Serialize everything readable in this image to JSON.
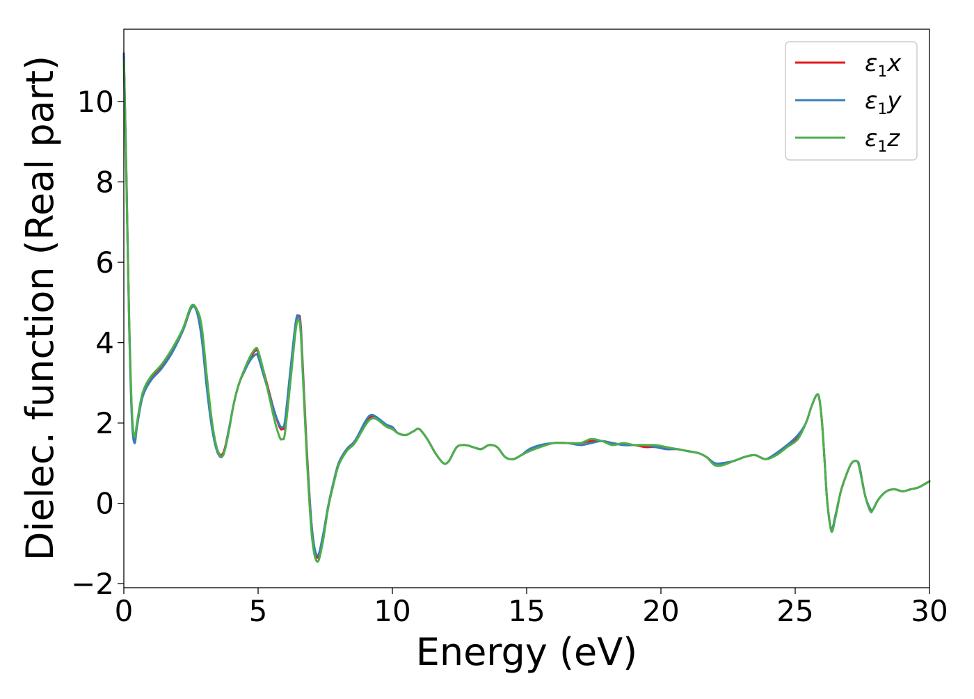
{
  "chart_data": {
    "type": "line",
    "xlabel": "Energy (eV)",
    "ylabel": "Dielec. function (Real part)",
    "xlim": [
      0,
      30
    ],
    "ylim": [
      -2.1,
      11.8
    ],
    "x_ticks": [
      0,
      5,
      10,
      15,
      20,
      25,
      30
    ],
    "y_ticks": [
      -2,
      0,
      2,
      4,
      6,
      8,
      10
    ],
    "x_tick_labels": [
      "0",
      "5",
      "10",
      "15",
      "20",
      "25",
      "30"
    ],
    "y_tick_labels": [
      "−2",
      "0",
      "2",
      "4",
      "6",
      "8",
      "10"
    ],
    "grid": false,
    "legend_position": "top-right",
    "series": [
      {
        "name": "ε1x",
        "symbol": "ε",
        "subscript": "1",
        "suffix": "x",
        "color": "#e41a1c",
        "x": [
          0,
          0.1,
          0.2,
          0.3,
          0.4,
          0.5,
          0.7,
          1.0,
          1.4,
          1.8,
          2.2,
          2.5,
          2.7,
          2.9,
          3.1,
          3.3,
          3.5,
          3.7,
          3.9,
          4.1,
          4.3,
          4.5,
          4.7,
          4.9,
          5.0,
          5.2,
          5.4,
          5.6,
          5.8,
          5.9,
          6.0,
          6.2,
          6.4,
          6.5,
          6.6,
          6.8,
          7.0,
          7.2,
          7.4,
          7.6,
          7.8,
          8.0,
          8.3,
          8.6,
          9.0,
          9.2,
          9.4,
          9.6,
          9.8,
          10.0,
          10.2,
          10.5,
          10.8,
          11.0,
          11.3,
          11.6,
          11.9,
          12.1,
          12.4,
          12.7,
          13.0,
          13.3,
          13.6,
          13.9,
          14.2,
          14.5,
          14.8,
          15.1,
          15.5,
          16.0,
          16.5,
          17.0,
          17.4,
          17.8,
          18.2,
          18.6,
          19.0,
          19.4,
          19.8,
          20.2,
          20.6,
          21.0,
          21.4,
          21.7,
          22.0,
          22.3,
          22.7,
          23.1,
          23.5,
          23.9,
          24.3,
          24.7,
          25.1,
          25.4,
          25.6,
          25.8,
          25.9,
          26.0,
          26.1,
          26.2,
          26.35,
          26.5,
          26.7,
          26.9,
          27.1,
          27.3,
          27.4,
          27.6,
          27.8,
          27.9,
          28.1,
          28.4,
          28.7,
          29.0,
          29.3,
          29.6,
          30.0
        ],
        "y": [
          11.2,
          8.0,
          4.5,
          2.2,
          1.6,
          2.0,
          2.7,
          3.1,
          3.4,
          3.8,
          4.3,
          4.85,
          4.85,
          4.3,
          3.0,
          1.9,
          1.3,
          1.25,
          1.8,
          2.5,
          3.0,
          3.3,
          3.6,
          3.8,
          3.75,
          3.3,
          2.8,
          2.3,
          1.9,
          1.85,
          2.0,
          3.2,
          4.4,
          4.65,
          4.3,
          1.5,
          -0.6,
          -1.35,
          -0.9,
          -0.1,
          0.5,
          1.0,
          1.35,
          1.55,
          2.0,
          2.15,
          2.15,
          2.0,
          1.9,
          1.85,
          1.75,
          1.7,
          1.8,
          1.85,
          1.6,
          1.25,
          1.0,
          1.05,
          1.4,
          1.45,
          1.4,
          1.35,
          1.45,
          1.4,
          1.15,
          1.1,
          1.2,
          1.3,
          1.4,
          1.5,
          1.5,
          1.5,
          1.55,
          1.55,
          1.5,
          1.45,
          1.45,
          1.4,
          1.4,
          1.35,
          1.35,
          1.3,
          1.25,
          1.15,
          1.0,
          1.0,
          1.05,
          1.15,
          1.2,
          1.1,
          1.25,
          1.45,
          1.65,
          2.0,
          2.4,
          2.7,
          2.6,
          2.0,
          1.0,
          0.0,
          -0.65,
          -0.3,
          0.3,
          0.7,
          1.0,
          1.05,
          0.9,
          0.2,
          -0.15,
          -0.15,
          0.1,
          0.3,
          0.35,
          0.3,
          0.35,
          0.4,
          0.55
        ]
      },
      {
        "name": "ε1y",
        "symbol": "ε",
        "subscript": "1",
        "suffix": "y",
        "color": "#377eb8",
        "x": [
          0,
          0.1,
          0.2,
          0.3,
          0.4,
          0.5,
          0.7,
          1.0,
          1.4,
          1.8,
          2.2,
          2.5,
          2.7,
          2.9,
          3.1,
          3.3,
          3.5,
          3.7,
          3.9,
          4.1,
          4.3,
          4.5,
          4.7,
          4.9,
          5.0,
          5.2,
          5.4,
          5.6,
          5.8,
          5.9,
          6.0,
          6.2,
          6.4,
          6.5,
          6.6,
          6.8,
          7.0,
          7.2,
          7.4,
          7.6,
          7.8,
          8.0,
          8.3,
          8.6,
          9.0,
          9.2,
          9.4,
          9.6,
          9.8,
          10.0,
          10.2,
          10.5,
          10.8,
          11.0,
          11.3,
          11.6,
          11.9,
          12.1,
          12.4,
          12.7,
          13.0,
          13.3,
          13.6,
          13.9,
          14.2,
          14.5,
          14.8,
          15.1,
          15.5,
          16.0,
          16.5,
          17.0,
          17.4,
          17.8,
          18.2,
          18.6,
          19.0,
          19.4,
          19.8,
          20.2,
          20.6,
          21.0,
          21.4,
          21.7,
          22.0,
          22.3,
          22.7,
          23.1,
          23.5,
          23.9,
          24.3,
          24.7,
          25.1,
          25.4,
          25.6,
          25.8,
          25.9,
          26.0,
          26.1,
          26.2,
          26.35,
          26.5,
          26.7,
          26.9,
          27.1,
          27.3,
          27.4,
          27.6,
          27.8,
          27.9,
          28.1,
          28.4,
          28.7,
          29.0,
          29.3,
          29.6,
          30.0
        ],
        "y": [
          11.2,
          8.0,
          4.4,
          2.1,
          1.5,
          1.95,
          2.65,
          3.05,
          3.35,
          3.75,
          4.3,
          4.85,
          4.8,
          4.1,
          2.8,
          1.8,
          1.25,
          1.2,
          1.8,
          2.5,
          3.0,
          3.3,
          3.55,
          3.7,
          3.65,
          3.2,
          2.75,
          2.3,
          1.95,
          1.9,
          2.05,
          3.3,
          4.5,
          4.65,
          4.2,
          1.4,
          -0.6,
          -1.3,
          -0.85,
          -0.1,
          0.5,
          1.0,
          1.35,
          1.55,
          2.05,
          2.2,
          2.15,
          2.05,
          1.95,
          1.9,
          1.75,
          1.7,
          1.8,
          1.85,
          1.6,
          1.25,
          1.0,
          1.05,
          1.4,
          1.45,
          1.4,
          1.35,
          1.45,
          1.4,
          1.15,
          1.1,
          1.2,
          1.35,
          1.45,
          1.5,
          1.5,
          1.45,
          1.5,
          1.55,
          1.5,
          1.45,
          1.45,
          1.45,
          1.4,
          1.35,
          1.35,
          1.3,
          1.25,
          1.15,
          1.0,
          1.0,
          1.05,
          1.15,
          1.2,
          1.1,
          1.25,
          1.45,
          1.7,
          2.0,
          2.4,
          2.7,
          2.6,
          2.0,
          1.0,
          0.0,
          -0.65,
          -0.3,
          0.3,
          0.7,
          1.0,
          1.05,
          0.9,
          0.2,
          -0.15,
          -0.15,
          0.1,
          0.3,
          0.35,
          0.3,
          0.35,
          0.4,
          0.55
        ]
      },
      {
        "name": "ε1z",
        "symbol": "ε",
        "subscript": "1",
        "suffix": "z",
        "color": "#4daf4a",
        "x": [
          0,
          0.1,
          0.2,
          0.3,
          0.4,
          0.5,
          0.7,
          1.0,
          1.4,
          1.8,
          2.2,
          2.5,
          2.7,
          2.9,
          3.1,
          3.3,
          3.5,
          3.7,
          3.9,
          4.1,
          4.3,
          4.5,
          4.7,
          4.9,
          5.0,
          5.2,
          5.4,
          5.6,
          5.8,
          5.9,
          6.0,
          6.2,
          6.4,
          6.5,
          6.6,
          6.8,
          7.0,
          7.2,
          7.4,
          7.6,
          7.8,
          8.0,
          8.3,
          8.6,
          9.0,
          9.2,
          9.4,
          9.6,
          9.8,
          10.0,
          10.2,
          10.5,
          10.8,
          11.0,
          11.3,
          11.6,
          11.9,
          12.1,
          12.4,
          12.7,
          13.0,
          13.3,
          13.6,
          13.9,
          14.2,
          14.5,
          14.8,
          15.1,
          15.5,
          16.0,
          16.5,
          17.0,
          17.4,
          17.8,
          18.2,
          18.6,
          19.0,
          19.4,
          19.8,
          20.2,
          20.6,
          21.0,
          21.4,
          21.7,
          22.0,
          22.3,
          22.7,
          23.1,
          23.5,
          23.9,
          24.3,
          24.7,
          25.1,
          25.4,
          25.6,
          25.8,
          25.9,
          26.0,
          26.1,
          26.2,
          26.35,
          26.5,
          26.7,
          26.9,
          27.1,
          27.3,
          27.4,
          27.6,
          27.8,
          27.9,
          28.1,
          28.4,
          28.7,
          29.0,
          29.3,
          29.6,
          30.0
        ],
        "y": [
          11.0,
          7.8,
          4.6,
          2.3,
          1.65,
          2.05,
          2.75,
          3.15,
          3.45,
          3.85,
          4.35,
          4.9,
          4.85,
          4.4,
          3.1,
          1.95,
          1.3,
          1.2,
          1.75,
          2.5,
          3.0,
          3.35,
          3.65,
          3.85,
          3.8,
          3.3,
          2.7,
          2.1,
          1.65,
          1.6,
          1.75,
          3.0,
          4.3,
          4.55,
          4.1,
          1.3,
          -0.8,
          -1.45,
          -1.0,
          -0.15,
          0.45,
          0.95,
          1.3,
          1.5,
          1.95,
          2.1,
          2.1,
          2.0,
          1.9,
          1.85,
          1.75,
          1.7,
          1.8,
          1.85,
          1.6,
          1.25,
          1.0,
          1.05,
          1.4,
          1.45,
          1.4,
          1.35,
          1.45,
          1.4,
          1.15,
          1.1,
          1.2,
          1.3,
          1.4,
          1.5,
          1.5,
          1.5,
          1.6,
          1.55,
          1.45,
          1.5,
          1.45,
          1.45,
          1.45,
          1.4,
          1.35,
          1.3,
          1.25,
          1.15,
          0.95,
          0.95,
          1.05,
          1.15,
          1.2,
          1.1,
          1.2,
          1.4,
          1.6,
          2.0,
          2.4,
          2.7,
          2.6,
          2.0,
          1.0,
          0.0,
          -0.7,
          -0.35,
          0.3,
          0.7,
          1.0,
          1.05,
          0.85,
          0.2,
          -0.2,
          -0.15,
          0.1,
          0.3,
          0.35,
          0.3,
          0.35,
          0.4,
          0.55
        ]
      }
    ]
  }
}
